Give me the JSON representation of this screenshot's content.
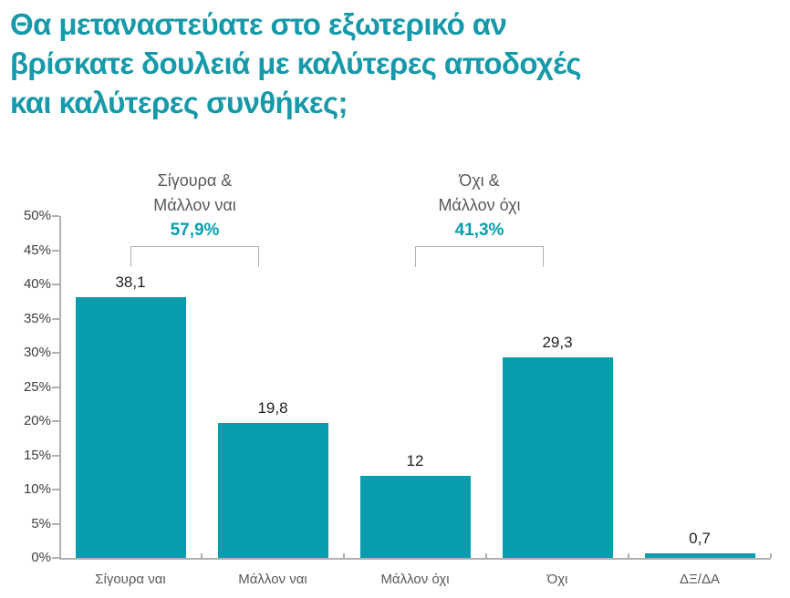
{
  "title": {
    "text": "Θα μεταναστεύατε στο εξωτερικό αν βρίσκατε δουλειά με καλύτερες αποδοχές και καλύτερες συνθήκες;",
    "lines": [
      "Θα μεταναστεύατε στο εξωτερικό αν",
      "βρίσκατε δουλειά με καλύτερες αποδοχές",
      "και καλύτερες συνθήκες;"
    ]
  },
  "colors": {
    "accent_teal": "#089DAD",
    "title_teal": "#1699A9",
    "label_gray": "#595959",
    "axis_gray": "#B0B0B0",
    "value_black": "#1F1F1F"
  },
  "chart_data": {
    "type": "bar",
    "title": "Θα μεταναστεύατε στο εξωτερικό αν βρίσκατε δουλειά με καλύτερες αποδοχές και καλύτερες συνθήκες;",
    "categories": [
      "Σίγουρα ναι",
      "Μάλλον ναι",
      "Μάλλον όχι",
      "Όχι",
      "ΔΞ/ΔΑ"
    ],
    "values": [
      38.1,
      19.8,
      12,
      29.3,
      0.7
    ],
    "value_labels": [
      "38,1",
      "19,8",
      "12",
      "29,3",
      "0,7"
    ],
    "xlabel": "",
    "ylabel": "",
    "ylim": [
      0,
      50
    ],
    "ytick_step": 5,
    "ytick_labels": [
      "0%",
      "5%",
      "10%",
      "15%",
      "20%",
      "25%",
      "30%",
      "35%",
      "40%",
      "45%",
      "50%"
    ],
    "grid": false,
    "legend": "none",
    "bar_color": "#089DAD",
    "annotations": [
      {
        "lines": [
          "Σίγουρα &",
          "Μάλλον ναι"
        ],
        "value": "57,9%",
        "span": [
          0,
          1
        ],
        "covers_categories": [
          "Σίγουρα ναι",
          "Μάλλον ναι"
        ]
      },
      {
        "lines": [
          "Όχι &",
          "Μάλλον όχι"
        ],
        "value": "41,3%",
        "span": [
          2,
          3
        ],
        "covers_categories": [
          "Μάλλον όχι",
          "Όχι"
        ]
      }
    ]
  }
}
